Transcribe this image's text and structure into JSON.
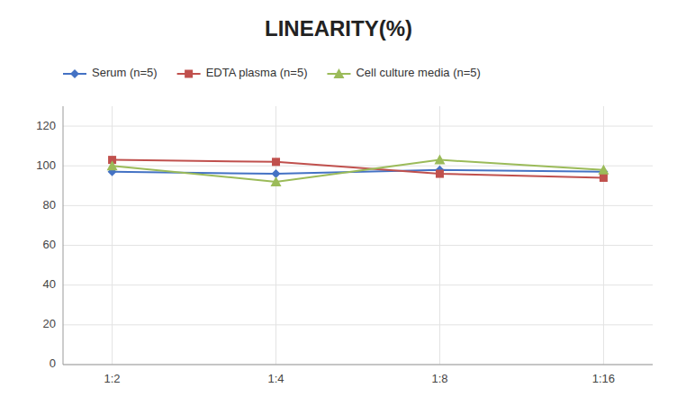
{
  "chart_data": {
    "type": "line",
    "title": "LINEARITY(%)",
    "categories": [
      "1:2",
      "1:4",
      "1:8",
      "1:16"
    ],
    "series": [
      {
        "name": "Serum (n=5)",
        "color": "#4472C4",
        "marker": "diamond",
        "values": [
          97,
          96,
          98,
          97
        ]
      },
      {
        "name": "EDTA plasma (n=5)",
        "color": "#C0504D",
        "marker": "square",
        "values": [
          103,
          102,
          96,
          94
        ]
      },
      {
        "name": "Cell culture media (n=5)",
        "color": "#9BBB59",
        "marker": "triangle",
        "values": [
          100,
          92,
          103,
          98
        ]
      }
    ],
    "ylim": [
      0,
      130
    ],
    "yticks": [
      0,
      20,
      40,
      60,
      80,
      100,
      120
    ],
    "grid": true,
    "legend": "top"
  }
}
